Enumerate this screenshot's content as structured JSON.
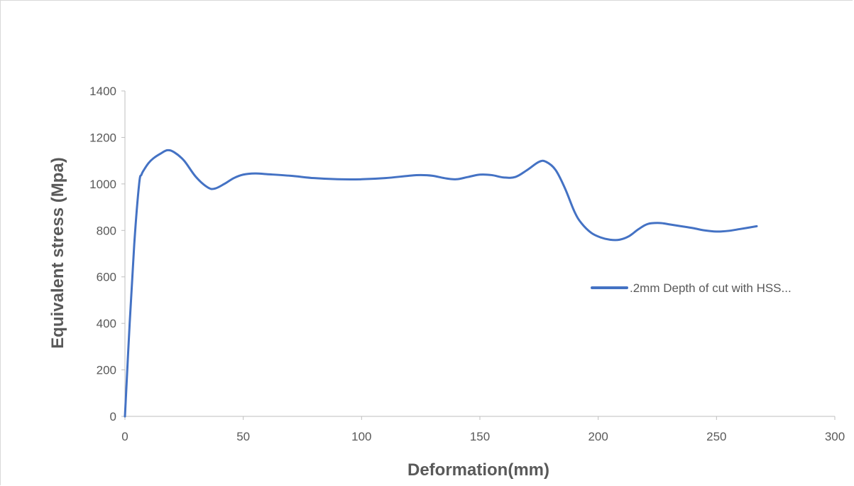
{
  "chart_data": {
    "type": "line",
    "title": "",
    "xlabel": "Deformation(mm)",
    "ylabel": "Equivalent stress (Mpa)",
    "xlim": [
      0,
      300
    ],
    "ylim": [
      0,
      1400
    ],
    "xticks": [
      0,
      50,
      100,
      150,
      200,
      250,
      300
    ],
    "yticks": [
      0,
      200,
      400,
      600,
      800,
      1000,
      1200,
      1400
    ],
    "grid": false,
    "legend_position": "right",
    "series": [
      {
        "name": ".2mm Depth of cut with HSS...",
        "color": "#4472c4",
        "x": [
          0,
          2,
          4,
          6,
          7,
          8,
          10,
          12,
          15,
          18,
          21,
          25,
          30,
          35,
          38,
          42,
          46,
          50,
          55,
          60,
          70,
          80,
          90,
          100,
          110,
          120,
          125,
          130,
          135,
          140,
          145,
          150,
          155,
          160,
          165,
          170,
          175,
          178,
          182,
          186,
          190,
          193,
          197,
          201,
          205,
          209,
          213,
          217,
          221,
          226,
          230,
          235,
          240,
          245,
          250,
          255,
          260,
          267
        ],
        "y": [
          0,
          400,
          750,
          1000,
          1040,
          1060,
          1090,
          1110,
          1130,
          1145,
          1135,
          1100,
          1030,
          985,
          980,
          1000,
          1025,
          1040,
          1045,
          1042,
          1035,
          1025,
          1020,
          1020,
          1025,
          1035,
          1038,
          1035,
          1025,
          1020,
          1030,
          1040,
          1038,
          1028,
          1030,
          1060,
          1095,
          1095,
          1060,
          980,
          880,
          830,
          790,
          770,
          760,
          760,
          775,
          805,
          828,
          832,
          826,
          818,
          810,
          800,
          795,
          798,
          806,
          818
        ]
      }
    ]
  }
}
